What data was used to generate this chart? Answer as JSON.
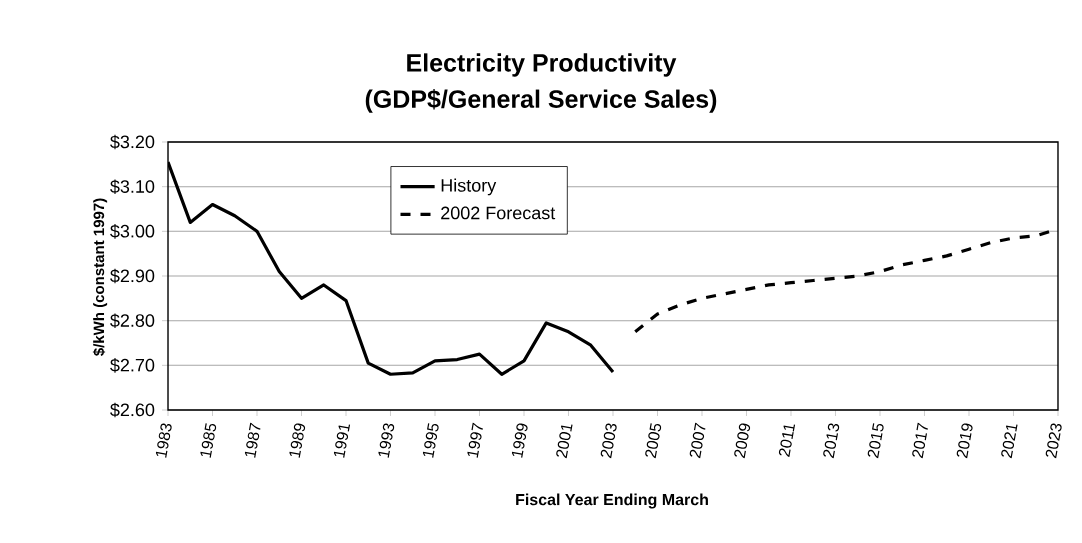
{
  "chart_data": {
    "type": "line",
    "title": "Electricity Productivity",
    "subtitle": "(GDP$/General Service Sales)",
    "xlabel": "Fiscal Year Ending March",
    "ylabel": "$/kWh (constant 1997)",
    "series": [
      {
        "name": "History",
        "color": "#000000",
        "line_style": "solid",
        "x": [
          1983,
          1984,
          1985,
          1986,
          1987,
          1988,
          1989,
          1990,
          1991,
          1992,
          1993,
          1994,
          1995,
          1996,
          1997,
          1998,
          1999,
          2000,
          2001,
          2002,
          2003
        ],
        "values": [
          3.155,
          3.02,
          3.06,
          3.035,
          3.0,
          2.91,
          2.85,
          2.88,
          2.845,
          2.705,
          2.68,
          2.683,
          2.71,
          2.713,
          2.725,
          2.68,
          2.71,
          2.795,
          2.775,
          2.745,
          2.685
        ]
      },
      {
        "name": "2002 Forecast",
        "color": "#000000",
        "line_style": "dashed",
        "x": [
          2004,
          2005,
          2006,
          2007,
          2008,
          2009,
          2010,
          2011,
          2012,
          2013,
          2014,
          2015,
          2016,
          2017,
          2018,
          2019,
          2020,
          2021,
          2022,
          2023
        ],
        "values": [
          2.775,
          2.815,
          2.835,
          2.85,
          2.86,
          2.87,
          2.88,
          2.885,
          2.89,
          2.895,
          2.9,
          2.91,
          2.925,
          2.935,
          2.945,
          2.96,
          2.975,
          2.985,
          2.99,
          3.005
        ]
      }
    ],
    "xlim": [
      1983,
      2023
    ],
    "xticks": [
      1983,
      1985,
      1987,
      1989,
      1991,
      1993,
      1995,
      1997,
      1999,
      2001,
      2003,
      2005,
      2007,
      2009,
      2011,
      2013,
      2015,
      2017,
      2019,
      2021,
      2023
    ],
    "ylim": [
      2.6,
      3.2
    ],
    "yticks": [
      {
        "value": 2.6,
        "label": "$2.60"
      },
      {
        "value": 2.7,
        "label": "$2.70"
      },
      {
        "value": 2.8,
        "label": "$2.80"
      },
      {
        "value": 2.9,
        "label": "$2.90"
      },
      {
        "value": 3.0,
        "label": "$3.00"
      },
      {
        "value": 3.1,
        "label": "$3.10"
      },
      {
        "value": 3.2,
        "label": "$3.20"
      }
    ],
    "grid": "y",
    "legend": "top"
  }
}
